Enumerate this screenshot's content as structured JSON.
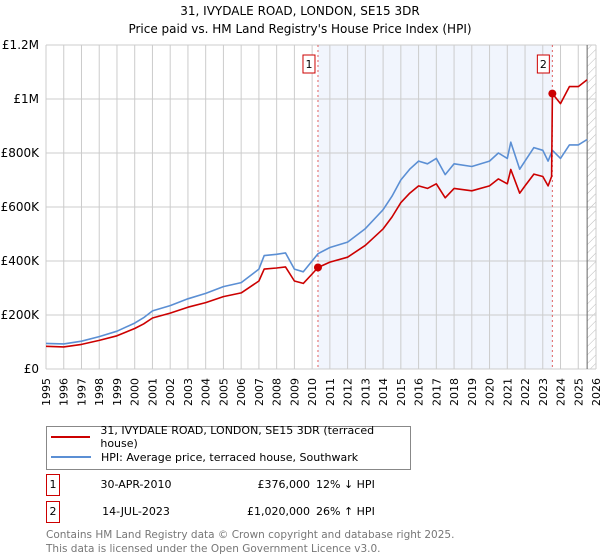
{
  "chart_data": {
    "type": "line",
    "title": "31, IVYDALE ROAD, LONDON, SE15 3DR",
    "subtitle": "Price paid vs. HM Land Registry's House Price Index (HPI)",
    "xlim": [
      1995,
      2026
    ],
    "ylim": [
      0,
      1200000
    ],
    "x_ticks": [
      "1995",
      "1996",
      "1997",
      "1998",
      "1999",
      "2000",
      "2001",
      "2002",
      "2003",
      "2004",
      "2005",
      "2006",
      "2007",
      "2008",
      "2009",
      "2010",
      "2011",
      "2012",
      "2013",
      "2014",
      "2015",
      "2016",
      "2017",
      "2018",
      "2019",
      "2020",
      "2021",
      "2022",
      "2023",
      "2024",
      "2025",
      "2026"
    ],
    "y_ticks": [
      {
        "v": 0,
        "label": "£0"
      },
      {
        "v": 200000,
        "label": "£200K"
      },
      {
        "v": 400000,
        "label": "£400K"
      },
      {
        "v": 600000,
        "label": "£600K"
      },
      {
        "v": 800000,
        "label": "£800K"
      },
      {
        "v": 1000000,
        "label": "£1M"
      },
      {
        "v": 1200000,
        "label": "£1.2M"
      }
    ],
    "grid": true,
    "series": [
      {
        "name": "31, IVYDALE ROAD, LONDON, SE15 3DR (terraced house)",
        "color": "#cc0000",
        "x": [
          1995,
          1996,
          1997,
          1998,
          1999,
          2000,
          2000.5,
          2001,
          2002,
          2003,
          2004,
          2005,
          2006,
          2007,
          2007.3,
          2008,
          2008.5,
          2009,
          2009.5,
          2010,
          2010.33,
          2011,
          2012,
          2013,
          2014,
          2014.5,
          2015,
          2015.5,
          2016,
          2016.5,
          2017,
          2017.5,
          2018,
          2019,
          2020,
          2020.5,
          2021,
          2021.2,
          2021.7,
          2022,
          2022.5,
          2023,
          2023.3,
          2023.5,
          2023.54,
          2024,
          2024.5,
          2025,
          2025.5
        ],
        "y": [
          84000,
          82000,
          91000,
          106000,
          123000,
          150000,
          167000,
          189000,
          207000,
          229000,
          246000,
          268000,
          282000,
          326000,
          370000,
          374000,
          378000,
          326000,
          317000,
          352000,
          376000,
          396000,
          414000,
          458000,
          519000,
          563000,
          616000,
          651000,
          678000,
          669000,
          686000,
          634000,
          669000,
          660000,
          678000,
          704000,
          686000,
          739000,
          651000,
          678000,
          722000,
          713000,
          678000,
          713000,
          1020000,
          983000,
          1046000,
          1046000,
          1071000
        ]
      },
      {
        "name": "HPI: Average price, terraced house, Southwark",
        "color": "#5b8fd4",
        "x": [
          1995,
          1996,
          1997,
          1998,
          1999,
          2000,
          2000.5,
          2001,
          2002,
          2003,
          2004,
          2005,
          2006,
          2007,
          2007.3,
          2008,
          2008.5,
          2009,
          2009.5,
          2010,
          2010.33,
          2011,
          2012,
          2013,
          2014,
          2014.5,
          2015,
          2015.5,
          2016,
          2016.5,
          2017,
          2017.5,
          2018,
          2019,
          2020,
          2020.5,
          2021,
          2021.2,
          2021.7,
          2022,
          2022.5,
          2023,
          2023.3,
          2023.54,
          2024,
          2024.5,
          2025,
          2025.5
        ],
        "y": [
          95000,
          93000,
          103000,
          120000,
          140000,
          170000,
          190000,
          215000,
          235000,
          260000,
          280000,
          305000,
          320000,
          370000,
          420000,
          425000,
          430000,
          370000,
          360000,
          400000,
          427000,
          450000,
          470000,
          520000,
          590000,
          640000,
          700000,
          740000,
          770000,
          760000,
          780000,
          720000,
          760000,
          750000,
          770000,
          800000,
          780000,
          840000,
          740000,
          770000,
          820000,
          810000,
          770000,
          810000,
          780000,
          830000,
          830000,
          850000
        ]
      }
    ],
    "sales": [
      {
        "num": "1",
        "x": 2010.33,
        "price_value": 376000,
        "date": "30-APR-2010",
        "price": "£376,000",
        "hpi": "12% ↓ HPI"
      },
      {
        "num": "2",
        "x": 2023.54,
        "price_value": 1020000,
        "date": "14-JUL-2023",
        "price": "£1,020,000",
        "hpi": "26% ↑ HPI"
      }
    ],
    "forecast_from": 2025.5
  },
  "footer": {
    "line1": "Contains HM Land Registry data © Crown copyright and database right 2025.",
    "line2": "This data is licensed under the Open Government Licence v3.0."
  }
}
